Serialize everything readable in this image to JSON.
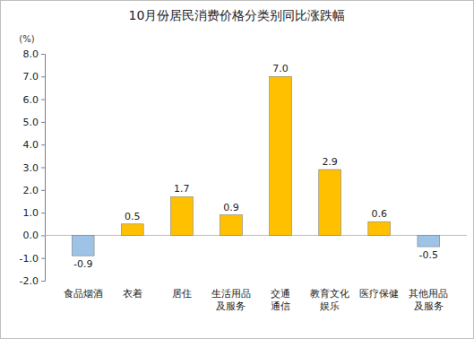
{
  "chart_data": {
    "type": "bar",
    "title": "10月份居民消费价格分类别同比涨跌幅",
    "y_label": "(%)",
    "categories": [
      "食品烟酒",
      "衣着",
      "居住",
      "生活用品\n及服务",
      "交通\n通信",
      "教育文化\n娱乐",
      "医疗保健",
      "其他用品\n及服务"
    ],
    "values": [
      -0.9,
      0.5,
      1.7,
      0.9,
      7.0,
      2.9,
      0.6,
      -0.5
    ],
    "value_labels": [
      "-0.9",
      "0.5",
      "1.7",
      "0.9",
      "7.0",
      "2.9",
      "0.6",
      "-0.5"
    ],
    "colors": [
      "#9dc3e6",
      "#ffc000",
      "#ffc000",
      "#ffc000",
      "#ffc000",
      "#ffc000",
      "#ffc000",
      "#9dc3e6"
    ],
    "ylim": [
      -2,
      8
    ],
    "yticks": [
      {
        "value": -2,
        "label": "-2.0"
      },
      {
        "value": -1,
        "label": "-1.0"
      },
      {
        "value": 0,
        "label": "0.0"
      },
      {
        "value": 1,
        "label": "1.0"
      },
      {
        "value": 2,
        "label": "2.0"
      },
      {
        "value": 3,
        "label": "3.0"
      },
      {
        "value": 4,
        "label": "4.0"
      },
      {
        "value": 5,
        "label": "5.0"
      },
      {
        "value": 6,
        "label": "6.0"
      },
      {
        "value": 7,
        "label": "7.0"
      },
      {
        "value": 8,
        "label": "8.0"
      }
    ],
    "grid": false,
    "data_labels": true
  }
}
